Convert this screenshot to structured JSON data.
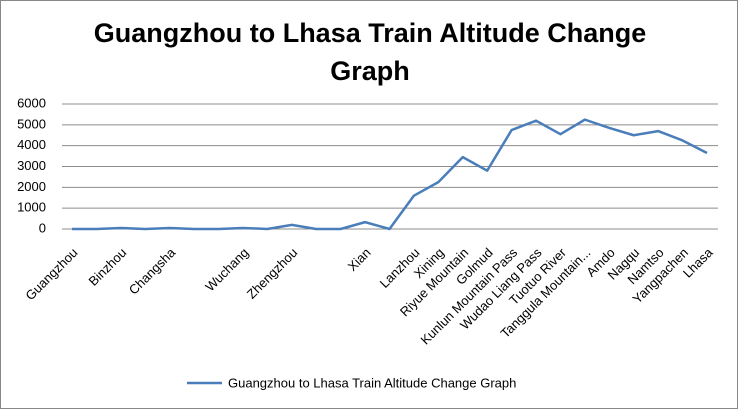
{
  "chart_data": {
    "type": "line",
    "title": "Guangzhou to Lhasa Train Altitude Change Graph",
    "categories": [
      "Guangzhou",
      null,
      "Binzhou",
      null,
      "Changsha",
      null,
      null,
      "Wuchang",
      null,
      "Zhengzhou",
      null,
      null,
      "Xian",
      null,
      "Lanzhou",
      "Xining",
      "Riyue Mountain",
      "Golmud",
      "Kunlun Mountain Pass",
      "Wudao Liang Pass",
      "Tuotuo River",
      "Tanggula Mountain...",
      "Amdo",
      "Nagqu",
      "Namtso",
      "Yangpachen",
      "Lhasa"
    ],
    "series": [
      {
        "name": "Guangzhou to Lhasa Train Altitude Change Graph",
        "color": "#4a7ebb",
        "values": [
          0,
          0,
          50,
          0,
          50,
          0,
          0,
          50,
          0,
          200,
          0,
          0,
          330,
          0,
          1600,
          2250,
          3450,
          2800,
          4750,
          5200,
          4550,
          5250,
          4850,
          4500,
          4700,
          4250,
          3650
        ]
      }
    ],
    "ylim": [
      0,
      6000
    ],
    "yticks": [
      0,
      1000,
      2000,
      3000,
      4000,
      5000,
      6000
    ],
    "grid": true,
    "legend": "bottom"
  }
}
